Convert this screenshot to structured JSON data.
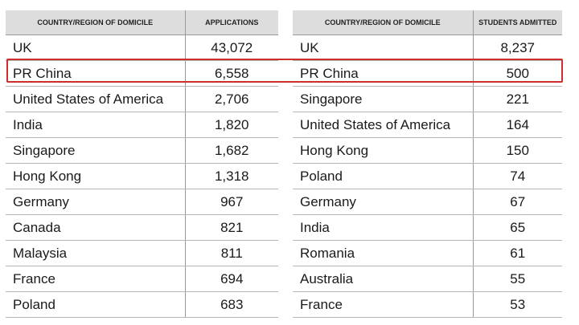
{
  "left_table": {
    "header_country": "COUNTRY/REGION OF DOMICILE",
    "header_value": "APPLICATIONS",
    "rows": [
      {
        "country": "UK",
        "value": "43,072"
      },
      {
        "country": "PR China",
        "value": "6,558"
      },
      {
        "country": "United States of America",
        "value": "2,706"
      },
      {
        "country": "India",
        "value": "1,820"
      },
      {
        "country": "Singapore",
        "value": "1,682"
      },
      {
        "country": "Hong Kong",
        "value": "1,318"
      },
      {
        "country": "Germany",
        "value": "967"
      },
      {
        "country": "Canada",
        "value": "821"
      },
      {
        "country": "Malaysia",
        "value": "811"
      },
      {
        "country": "France",
        "value": "694"
      },
      {
        "country": "Poland",
        "value": "683"
      }
    ]
  },
  "right_table": {
    "header_country": "COUNTRY/REGION OF DOMICILE",
    "header_value": "STUDENTS ADMITTED",
    "rows": [
      {
        "country": "UK",
        "value": "8,237"
      },
      {
        "country": "PR China",
        "value": "500"
      },
      {
        "country": "Singapore",
        "value": "221"
      },
      {
        "country": "United States of America",
        "value": "164"
      },
      {
        "country": "Hong Kong",
        "value": "150"
      },
      {
        "country": "Poland",
        "value": "74"
      },
      {
        "country": "Germany",
        "value": "67"
      },
      {
        "country": "India",
        "value": "65"
      },
      {
        "country": "Romania",
        "value": "61"
      },
      {
        "country": "Australia",
        "value": "55"
      },
      {
        "country": "France",
        "value": "53"
      }
    ]
  },
  "highlight": {
    "color": "#cc2e2e",
    "row_country": "PR China"
  }
}
